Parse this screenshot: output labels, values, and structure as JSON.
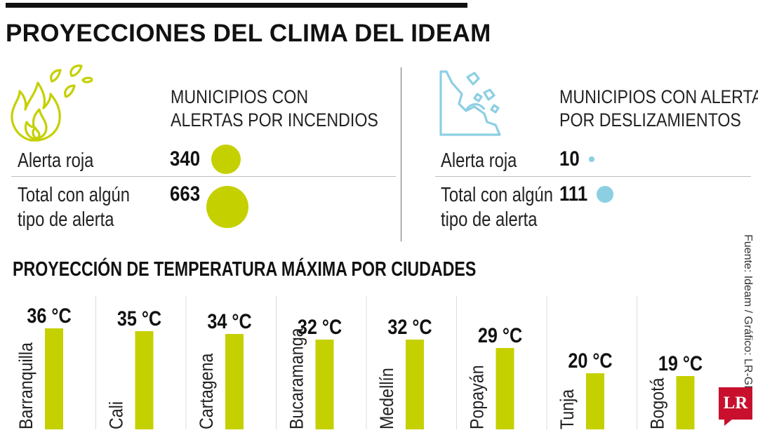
{
  "title": "PROYECCIONES DEL CLIMA DEL IDEAM",
  "fires": {
    "heading_line1": "MUNICIPIOS CON",
    "heading_line2": "ALERTAS POR INCENDIOS",
    "rows": [
      {
        "label_line1": "Alerta roja",
        "label_line2": "",
        "value": "340",
        "amount": 340
      },
      {
        "label_line1": "Total con algún",
        "label_line2": "tipo de alerta",
        "value": "663",
        "amount": 663
      }
    ],
    "color": "#c5d000",
    "icon": "fire-icon"
  },
  "landslides": {
    "heading_line1": "MUNICIPIOS CON ALERTAS",
    "heading_line2": "POR DESLIZAMIENTOS",
    "rows": [
      {
        "label_line1": "Alerta roja",
        "label_line2": "",
        "value": "10",
        "amount": 10
      },
      {
        "label_line1": "Total con algún",
        "label_line2": "tipo de alerta",
        "value": "111",
        "amount": 111
      }
    ],
    "color": "#8ccfe3",
    "icon": "landslide-icon"
  },
  "temps_title": "PROYECCIÓN DE TEMPERATURA MÁXIMA POR CIUDADES",
  "source": "Fuente: Ideam / Gráfico: LR-GR",
  "logo_text": "LR",
  "chart_data": {
    "type": "bar",
    "title": "PROYECCIÓN DE TEMPERATURA MÁXIMA POR CIUDADES",
    "categories": [
      "Barranquilla",
      "Cali",
      "Cartagena",
      "Bucaramanga",
      "Medellín",
      "Popayán",
      "Tunja",
      "Bogotá"
    ],
    "values": [
      36,
      35,
      34,
      32,
      32,
      29,
      20,
      19
    ],
    "value_labels": [
      "36 °C",
      "35 °C",
      "34 °C",
      "32 °C",
      "32 °C",
      "29 °C",
      "20 °C",
      "19 °C"
    ],
    "unit": "°C",
    "ylim": [
      0,
      36
    ],
    "grid": false,
    "bar_color": "#c5d000"
  }
}
